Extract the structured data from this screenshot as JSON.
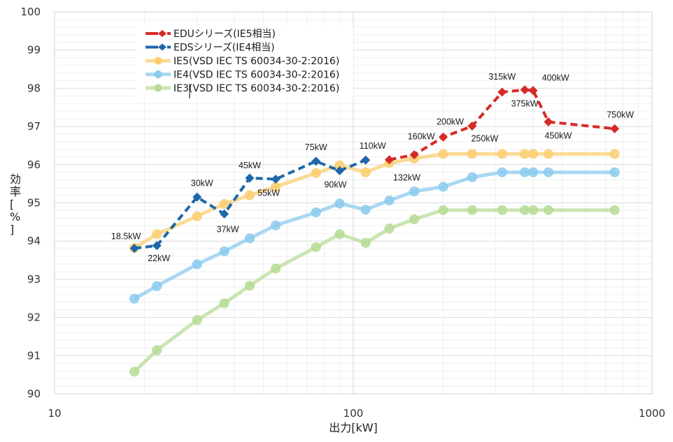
{
  "chart_data": {
    "type": "line",
    "title": "",
    "xlabel": "出力[kW]",
    "ylabel": "効率[%]",
    "xscale": "log",
    "xlim": [
      10,
      1000
    ],
    "ylim": [
      90,
      100
    ],
    "x_ticks": [
      "10",
      "100",
      "1000"
    ],
    "y_ticks": [
      "90",
      "91",
      "92",
      "93",
      "94",
      "95",
      "96",
      "97",
      "98",
      "99",
      "100"
    ],
    "grid": true,
    "legend_position": "top-left",
    "series": [
      {
        "name": "EDUシリーズ(IE5相当)",
        "color": "#d62a26",
        "style": "dashed",
        "marker": "diamond",
        "x": [
          132,
          160,
          200,
          250,
          315,
          375,
          400,
          450,
          750
        ],
        "y": [
          96.13,
          96.26,
          96.72,
          97.01,
          97.9,
          97.96,
          97.94,
          97.12,
          96.94
        ],
        "labels": [
          "",
          "160kW",
          "200kW",
          "250kW",
          "315kW",
          "375kW",
          "400kW",
          "450kW",
          "750kW"
        ]
      },
      {
        "name": "EDSシリーズ(IE4相当)",
        "color": "#1f67aa",
        "style": "dashed",
        "marker": "diamond",
        "x": [
          18.5,
          22,
          30,
          37,
          45,
          55,
          75,
          90,
          110
        ],
        "y": [
          93.81,
          93.88,
          95.15,
          94.71,
          95.65,
          95.62,
          96.09,
          95.84,
          96.12
        ],
        "labels": [
          "18.5kW",
          "22kW",
          "30kW",
          "37kW",
          "45kW",
          "55kW",
          "75kW",
          "90kW",
          "110kW"
        ]
      },
      {
        "name": "IE5(VSD IEC TS 60034-30-2:2016)",
        "color": "#f9cf72",
        "style": "solid",
        "marker": "circle",
        "x": [
          18.5,
          22,
          30,
          37,
          45,
          55,
          75,
          90,
          110,
          132,
          160,
          200,
          250,
          315,
          375,
          400,
          450,
          750
        ],
        "y": [
          93.82,
          94.18,
          94.65,
          94.97,
          95.2,
          95.42,
          95.78,
          95.98,
          95.8,
          96.04,
          96.16,
          96.28,
          96.28,
          96.28,
          96.28,
          96.28,
          96.28,
          96.28
        ],
        "labels": [
          "",
          "",
          "",
          "",
          "",
          "",
          "",
          "",
          "",
          "132kW",
          "",
          "",
          "",
          "",
          "",
          "",
          "",
          ""
        ]
      },
      {
        "name": "IE4(VSD IEC TS 60034-30-2:2016)",
        "color": "#8ccbee",
        "style": "solid",
        "marker": "circle",
        "x": [
          18.5,
          22,
          30,
          37,
          45,
          55,
          75,
          90,
          110,
          132,
          160,
          200,
          250,
          315,
          375,
          400,
          450,
          750
        ],
        "y": [
          92.49,
          92.82,
          93.39,
          93.73,
          94.07,
          94.41,
          94.75,
          94.98,
          94.82,
          95.06,
          95.3,
          95.42,
          95.67,
          95.8,
          95.8,
          95.8,
          95.8,
          95.8
        ],
        "labels": []
      },
      {
        "name": "IE3(VSD IEC TS 60034-30-2:2016)",
        "color": "#b8dc98",
        "style": "solid",
        "marker": "circle",
        "x": [
          18.5,
          22,
          30,
          37,
          45,
          55,
          75,
          90,
          110,
          132,
          160,
          200,
          250,
          315,
          375,
          400,
          450,
          750
        ],
        "y": [
          90.58,
          91.14,
          91.93,
          92.37,
          92.83,
          93.28,
          93.84,
          94.18,
          93.95,
          94.33,
          94.57,
          94.81,
          94.81,
          94.81,
          94.81,
          94.81,
          94.81,
          94.81
        ],
        "labels": []
      }
    ]
  }
}
